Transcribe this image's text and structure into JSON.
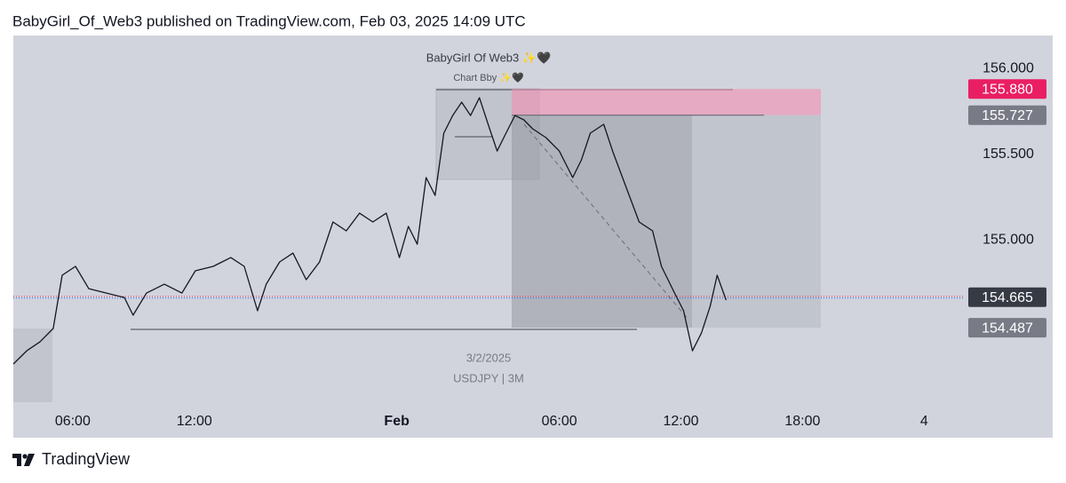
{
  "chart_data": {
    "type": "line",
    "title": "BabyGirl_Of_Web3 published on TradingView.com, Feb 03, 2025 14:09 UTC",
    "watermark_author": "BabyGirl Of Web3 ✨🖤",
    "watermark_note": "Chart Bby ✨🖤",
    "watermark_date": "3/2/2025",
    "watermark_symbol": "USDJPY | 3M",
    "brand": "TradingView",
    "color": "#131722",
    "xlim": [
      0,
      46.9
    ],
    "xticks": [
      {
        "value": 2.93,
        "label": "06:00"
      },
      {
        "value": 8.93,
        "label": "12:00"
      },
      {
        "value": 18.92,
        "label": "Feb"
      },
      {
        "value": 26.94,
        "label": "06:00"
      },
      {
        "value": 32.94,
        "label": "12:00"
      },
      {
        "value": 38.94,
        "label": "18:00"
      },
      {
        "value": 44.94,
        "label": "4"
      }
    ],
    "ylim": [
      153.99,
      156.192
    ],
    "yticks": [
      {
        "value": 155,
        "label": "155.000"
      },
      {
        "value": 155.5,
        "label": "155.500"
      },
      {
        "value": 156,
        "label": "156.000"
      }
    ],
    "price_labels": [
      {
        "value": 155.88,
        "label": "155.880",
        "color": "#e91e63"
      },
      {
        "value": 155.727,
        "label": "155.727",
        "color": "#787b86"
      },
      {
        "value": 154.665,
        "label": "154.665",
        "color": "#363a45"
      },
      {
        "value": 154.487,
        "label": "154.487",
        "color": "#787b86"
      }
    ],
    "x": [
      0,
      0.66,
      1.31,
      1.97,
      2.41,
      3.07,
      3.72,
      4.6,
      5.48,
      5.91,
      6.57,
      7.45,
      8.32,
      8.98,
      9.86,
      10.73,
      11.39,
      12.05,
      12.48,
      13.14,
      13.8,
      14.45,
      15.11,
      15.77,
      16.43,
      17.08,
      17.74,
      18.4,
      19.05,
      19.49,
      19.93,
      20.37,
      20.81,
      21.24,
      21.68,
      22.12,
      22.56,
      23.0,
      23.43,
      23.87,
      24.31,
      24.75,
      25.19,
      25.62,
      26.28,
      26.94,
      27.6,
      28.03,
      28.47,
      29.13,
      29.57,
      30.22,
      30.88,
      31.54,
      31.98,
      32.63,
      33.07,
      33.51,
      33.95,
      34.38,
      34.73,
      35.17
    ],
    "values": [
      154.275,
      154.352,
      154.404,
      154.482,
      154.793,
      154.845,
      154.715,
      154.689,
      154.663,
      154.56,
      154.689,
      154.741,
      154.689,
      154.819,
      154.845,
      154.896,
      154.845,
      154.586,
      154.741,
      154.871,
      154.922,
      154.767,
      154.871,
      155.104,
      155.052,
      155.155,
      155.104,
      155.155,
      154.896,
      155.078,
      154.974,
      155.363,
      155.259,
      155.622,
      155.725,
      155.803,
      155.725,
      155.829,
      155.674,
      155.518,
      155.622,
      155.725,
      155.7,
      155.648,
      155.596,
      155.518,
      155.363,
      155.466,
      155.622,
      155.674,
      155.518,
      155.311,
      155.104,
      155.052,
      154.845,
      154.689,
      154.586,
      154.352,
      154.456,
      154.611,
      154.793,
      154.648
    ]
  }
}
